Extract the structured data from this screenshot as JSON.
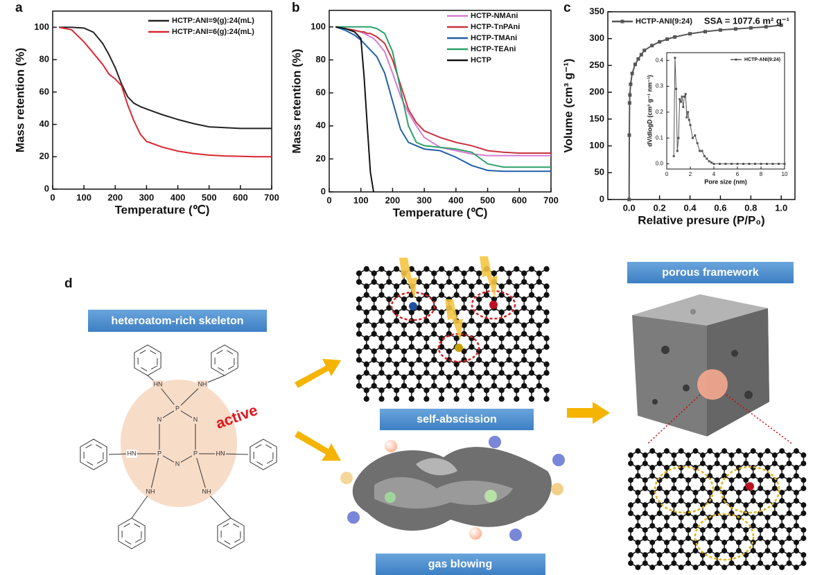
{
  "chart_data": [
    {
      "type": "line",
      "panel_label": "a",
      "xlabel": "Temperature (℃)",
      "ylabel": "Mass retention (%)",
      "xlim": [
        0,
        700
      ],
      "xticks": [
        0,
        100,
        200,
        300,
        400,
        500,
        600,
        700
      ],
      "ylim": [
        0,
        110
      ],
      "yticks": [
        0,
        20,
        40,
        60,
        80,
        100
      ],
      "legend": "upper right",
      "x": [
        20,
        60,
        100,
        130,
        160,
        180,
        200,
        220,
        240,
        260,
        280,
        300,
        350,
        400,
        450,
        500,
        550,
        600,
        650,
        700
      ],
      "series": [
        {
          "name": "HCTP:ANI=9(g):24(mL)",
          "color": "#222222",
          "values": [
            100,
            100,
            99.5,
            97,
            90,
            83,
            75,
            65,
            57,
            53,
            51,
            49.5,
            46,
            43,
            40.5,
            38.5,
            38,
            37.5,
            37.5,
            37.5
          ]
        },
        {
          "name": "HCTP:ANI=6(g):24(mL)",
          "color": "#d9262f",
          "values": [
            100,
            98.5,
            91,
            84,
            77,
            71,
            68,
            64,
            52,
            42,
            34,
            29.5,
            26,
            23.5,
            22,
            21,
            20.5,
            20.3,
            20,
            20
          ]
        }
      ]
    },
    {
      "type": "line",
      "panel_label": "b",
      "xlabel": "Temperature (℃)",
      "ylabel": "Mass retention (%)",
      "xlim": [
        0,
        700
      ],
      "xticks": [
        0,
        100,
        200,
        300,
        400,
        500,
        600,
        700
      ],
      "ylim": [
        0,
        110
      ],
      "yticks": [
        0,
        20,
        40,
        60,
        80,
        100
      ],
      "legend": "upper right",
      "x": [
        20,
        50,
        80,
        100,
        110,
        120,
        130,
        140,
        150,
        175,
        200,
        225,
        250,
        275,
        300,
        350,
        400,
        450,
        500,
        550,
        600,
        650,
        700
      ],
      "series": [
        {
          "name": "HCTP-NMAni",
          "color": "#d67bd0",
          "values": [
            100,
            99,
            98,
            97,
            96,
            95,
            94,
            93,
            91,
            85,
            72,
            58,
            48,
            40,
            33,
            27,
            25,
            23,
            22,
            22,
            22,
            22,
            22
          ]
        },
        {
          "name": "HCTP-TnPAni",
          "color": "#c8323c",
          "values": [
            100,
            99,
            98,
            97,
            97,
            96,
            96,
            95,
            94,
            90,
            80,
            65,
            50,
            42,
            37,
            33,
            30,
            28,
            25,
            24,
            23.5,
            23.5,
            23.5
          ]
        },
        {
          "name": "HCTP-TMAni",
          "color": "#1f5fa8",
          "values": [
            100,
            98,
            95,
            92,
            90,
            88,
            86,
            84,
            82,
            72,
            55,
            38,
            30,
            28,
            26,
            25,
            21,
            16,
            13,
            12.5,
            12.5,
            12.5,
            12.5
          ]
        },
        {
          "name": "HCTP-TEAni",
          "color": "#2aa068",
          "values": [
            100,
            100,
            100,
            100,
            100,
            100,
            100,
            99.5,
            99,
            96,
            85,
            62,
            40,
            30,
            28,
            27,
            26,
            24,
            17,
            15,
            15,
            15,
            15
          ]
        },
        {
          "name": "HCTP",
          "color": "#111111",
          "values": [
            100,
            99,
            97,
            93,
            70,
            40,
            12,
            0,
            null,
            null,
            null,
            null,
            null,
            null,
            null,
            null,
            null,
            null,
            null,
            null,
            null,
            null,
            null
          ]
        }
      ]
    },
    {
      "type": "line",
      "panel_label": "c",
      "xlabel": "Relative presure (P/P₀)",
      "ylabel": "Volume (cm³ g⁻¹)",
      "annotation": "SSA = 1077.6 m² g⁻¹",
      "marker": "square",
      "legend": "upper left",
      "xlim": [
        -0.14,
        1.09
      ],
      "xticks": [
        {
          "value": 0,
          "label": "0.0"
        },
        0.2,
        0.4,
        0.6,
        0.8,
        {
          "value": 1,
          "label": "1.0"
        }
      ],
      "ylim": [
        0,
        350
      ],
      "yticks": [
        0,
        50,
        100,
        150,
        200,
        250,
        300,
        350
      ],
      "x": [
        0,
        0.001,
        0.003,
        0.005,
        0.01,
        0.02,
        0.04,
        0.06,
        0.08,
        0.1,
        0.15,
        0.2,
        0.25,
        0.3,
        0.4,
        0.5,
        0.6,
        0.7,
        0.8,
        0.9,
        1.0
      ],
      "series": [
        {
          "name": "HCTP-ANI(9:24)",
          "color": "#555555",
          "values": [
            0,
            120,
            180,
            195,
            215,
            235,
            252,
            262,
            270,
            278,
            287,
            294,
            299,
            303,
            309,
            313,
            316,
            318,
            320,
            322,
            325
          ]
        }
      ],
      "inset": {
        "type": "line",
        "xlabel": "Pore size (nm)",
        "ylabel": "dV/dlogD (cm³ g⁻¹ nm⁻¹)",
        "marker": "square",
        "legend": "upper right",
        "xlim": [
          0,
          10
        ],
        "xticks": [
          0,
          2,
          4,
          6,
          8,
          10
        ],
        "ylim": [
          -0.02,
          0.43
        ],
        "yticks": [
          {
            "value": 0,
            "label": "0.0"
          },
          0.1,
          0.2,
          0.3,
          0.4
        ],
        "x": [
          0.6,
          0.7,
          0.8,
          0.9,
          1.0,
          1.1,
          1.2,
          1.3,
          1.4,
          1.5,
          1.6,
          1.7,
          1.8,
          1.9,
          2.0,
          2.2,
          2.4,
          2.6,
          2.8,
          3.0,
          3.2,
          3.4,
          3.6,
          3.8,
          4.0,
          4.5,
          5,
          5.5,
          6,
          6.5,
          7,
          7.5,
          8,
          8.5,
          9,
          9.5,
          10
        ],
        "series": [
          {
            "name": "HCTP-ANI(9:24)",
            "color": "#555555",
            "values": [
              0.03,
              0.41,
              0.29,
              0.05,
              0.1,
              0.25,
              0.24,
              0.26,
              0.22,
              0.26,
              0.27,
              0.18,
              0.2,
              0.17,
              0.15,
              0.1,
              0.11,
              0.08,
              0.05,
              0.05,
              0.03,
              0.02,
              0.01,
              0.005,
              0,
              0,
              0,
              0,
              0,
              0,
              0,
              0,
              0,
              0,
              0,
              0,
              0
            ]
          }
        ]
      }
    }
  ],
  "diagram": {
    "panel_label": "d",
    "skeleton_label": "heteroatom-rich skeleton",
    "active_label": "active",
    "ring_atoms": [
      "P",
      "N",
      "N",
      "P",
      "P",
      "N"
    ],
    "amine_groups": [
      "HN",
      "NH",
      "HN",
      "HN",
      "NH",
      "NH"
    ],
    "step_labels": [
      "self-abscission",
      "gas blowing"
    ],
    "result_label": "porous framework"
  }
}
